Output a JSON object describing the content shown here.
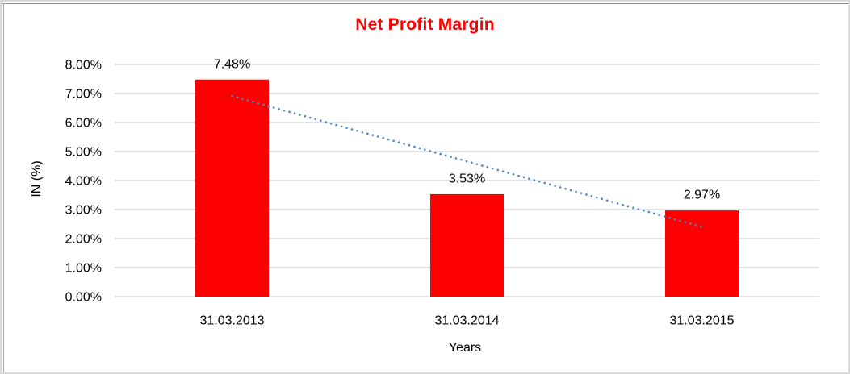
{
  "chart": {
    "frame_border_color": "#D9D9D9"
  },
  "chart_data": {
    "type": "bar",
    "title": "Net Profit Margin",
    "title_color": "#FF0000",
    "categories": [
      "31.03.2013",
      "31.03.2014",
      "31.03.2015"
    ],
    "values": [
      7.48,
      3.53,
      2.97
    ],
    "data_labels": [
      "7.48%",
      "3.53%",
      "2.97%"
    ],
    "xlabel": "Years",
    "ylabel": "IN (%)",
    "ylim": [
      0,
      8
    ],
    "y_ticks": [
      0,
      1,
      2,
      3,
      4,
      5,
      6,
      7,
      8
    ],
    "y_tick_labels": [
      "0.00%",
      "1.00%",
      "2.00%",
      "3.00%",
      "4.00%",
      "5.00%",
      "6.00%",
      "7.00%",
      "8.00%"
    ],
    "grid": true,
    "grid_color": "#D9D9D9",
    "legend": "none",
    "bar_color": "#FF0000",
    "label_color": "#000000",
    "trendline": {
      "type": "linear",
      "style": "dotted",
      "color": "#4E88C7",
      "start_value": 6.92,
      "end_value": 2.41
    }
  }
}
